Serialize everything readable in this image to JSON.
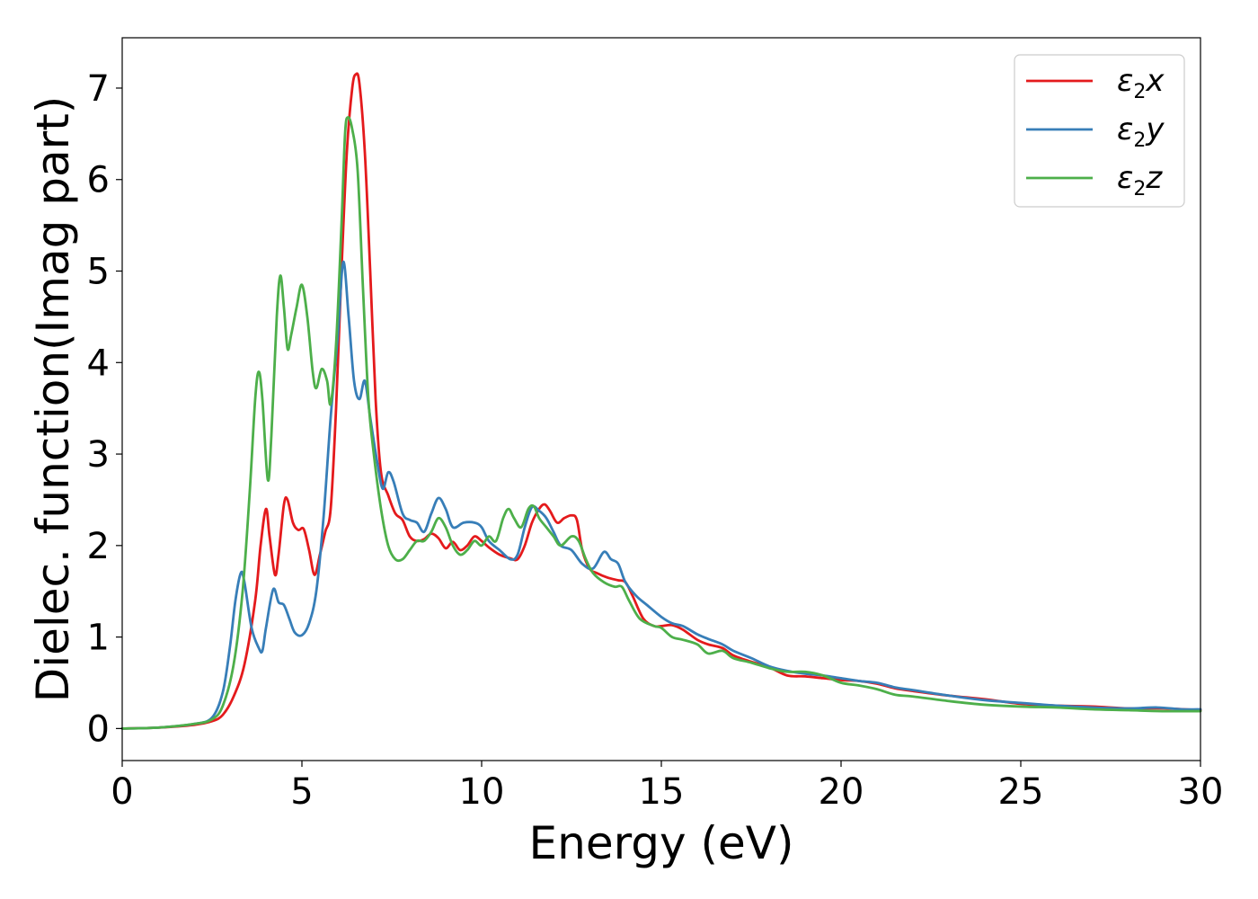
{
  "chart_data": {
    "type": "line",
    "title": "",
    "xlabel": "Energy (eV)",
    "ylabel": "Dielec. function(Imag part)",
    "xlim": [
      0,
      30
    ],
    "ylim": [
      -0.35,
      7.55
    ],
    "xticks": [
      0,
      5,
      10,
      15,
      20,
      25,
      30
    ],
    "yticks": [
      0,
      1,
      2,
      3,
      4,
      5,
      6,
      7
    ],
    "grid": false,
    "legend_position": "top-right",
    "series": [
      {
        "name": "ε2x",
        "legend_base": "ε",
        "legend_sub": "2",
        "legend_tail": "x",
        "color": "#e41a1c",
        "points": [
          [
            0,
            0
          ],
          [
            1,
            0.01
          ],
          [
            2,
            0.04
          ],
          [
            2.5,
            0.08
          ],
          [
            2.8,
            0.15
          ],
          [
            3.1,
            0.35
          ],
          [
            3.4,
            0.7
          ],
          [
            3.7,
            1.4
          ],
          [
            3.85,
            2.0
          ],
          [
            4.0,
            2.4
          ],
          [
            4.1,
            2.1
          ],
          [
            4.25,
            1.68
          ],
          [
            4.35,
            1.9
          ],
          [
            4.5,
            2.45
          ],
          [
            4.6,
            2.5
          ],
          [
            4.75,
            2.25
          ],
          [
            4.9,
            2.17
          ],
          [
            5.05,
            2.18
          ],
          [
            5.2,
            1.95
          ],
          [
            5.35,
            1.68
          ],
          [
            5.5,
            1.9
          ],
          [
            5.65,
            2.15
          ],
          [
            5.8,
            2.4
          ],
          [
            5.95,
            3.5
          ],
          [
            6.1,
            5.0
          ],
          [
            6.25,
            6.3
          ],
          [
            6.4,
            7.0
          ],
          [
            6.5,
            7.15
          ],
          [
            6.6,
            7.05
          ],
          [
            6.75,
            6.3
          ],
          [
            6.9,
            5.0
          ],
          [
            7.05,
            3.6
          ],
          [
            7.2,
            2.8
          ],
          [
            7.4,
            2.55
          ],
          [
            7.6,
            2.35
          ],
          [
            7.8,
            2.28
          ],
          [
            8.0,
            2.1
          ],
          [
            8.2,
            2.05
          ],
          [
            8.4,
            2.07
          ],
          [
            8.6,
            2.13
          ],
          [
            8.8,
            2.08
          ],
          [
            9.0,
            1.97
          ],
          [
            9.2,
            2.04
          ],
          [
            9.4,
            1.95
          ],
          [
            9.6,
            2.0
          ],
          [
            9.8,
            2.1
          ],
          [
            10.0,
            2.05
          ],
          [
            10.2,
            1.98
          ],
          [
            10.5,
            1.9
          ],
          [
            10.8,
            1.86
          ],
          [
            11.0,
            1.85
          ],
          [
            11.2,
            2.0
          ],
          [
            11.4,
            2.25
          ],
          [
            11.6,
            2.4
          ],
          [
            11.75,
            2.45
          ],
          [
            11.9,
            2.38
          ],
          [
            12.1,
            2.25
          ],
          [
            12.3,
            2.3
          ],
          [
            12.5,
            2.33
          ],
          [
            12.65,
            2.28
          ],
          [
            12.8,
            1.95
          ],
          [
            13.0,
            1.75
          ],
          [
            13.2,
            1.7
          ],
          [
            13.5,
            1.65
          ],
          [
            13.8,
            1.62
          ],
          [
            14.0,
            1.6
          ],
          [
            14.2,
            1.45
          ],
          [
            14.5,
            1.2
          ],
          [
            14.8,
            1.12
          ],
          [
            15.0,
            1.12
          ],
          [
            15.3,
            1.13
          ],
          [
            15.6,
            1.08
          ],
          [
            16.0,
            0.97
          ],
          [
            16.3,
            0.92
          ],
          [
            16.7,
            0.88
          ],
          [
            17.0,
            0.8
          ],
          [
            17.5,
            0.73
          ],
          [
            18.0,
            0.67
          ],
          [
            18.5,
            0.58
          ],
          [
            19.0,
            0.57
          ],
          [
            19.5,
            0.55
          ],
          [
            20.0,
            0.53
          ],
          [
            20.5,
            0.52
          ],
          [
            21.0,
            0.49
          ],
          [
            21.5,
            0.44
          ],
          [
            22.0,
            0.41
          ],
          [
            23.0,
            0.36
          ],
          [
            24.0,
            0.32
          ],
          [
            25.0,
            0.27
          ],
          [
            26.0,
            0.25
          ],
          [
            27.0,
            0.24
          ],
          [
            28.0,
            0.22
          ],
          [
            29.0,
            0.22
          ],
          [
            30.0,
            0.2
          ]
        ]
      },
      {
        "name": "ε2y",
        "legend_base": "ε",
        "legend_sub": "2",
        "legend_tail": "y",
        "color": "#377eb8",
        "points": [
          [
            0,
            0
          ],
          [
            1,
            0.01
          ],
          [
            2,
            0.05
          ],
          [
            2.5,
            0.12
          ],
          [
            2.8,
            0.4
          ],
          [
            3.0,
            0.9
          ],
          [
            3.15,
            1.4
          ],
          [
            3.3,
            1.7
          ],
          [
            3.4,
            1.6
          ],
          [
            3.6,
            1.1
          ],
          [
            3.8,
            0.88
          ],
          [
            3.9,
            0.85
          ],
          [
            4.0,
            1.1
          ],
          [
            4.2,
            1.52
          ],
          [
            4.35,
            1.38
          ],
          [
            4.5,
            1.35
          ],
          [
            4.65,
            1.2
          ],
          [
            4.8,
            1.05
          ],
          [
            5.0,
            1.02
          ],
          [
            5.2,
            1.15
          ],
          [
            5.4,
            1.5
          ],
          [
            5.6,
            2.3
          ],
          [
            5.8,
            3.4
          ],
          [
            6.0,
            4.3
          ],
          [
            6.15,
            5.1
          ],
          [
            6.3,
            4.5
          ],
          [
            6.45,
            3.8
          ],
          [
            6.6,
            3.6
          ],
          [
            6.75,
            3.8
          ],
          [
            6.9,
            3.4
          ],
          [
            7.1,
            2.9
          ],
          [
            7.25,
            2.62
          ],
          [
            7.4,
            2.8
          ],
          [
            7.55,
            2.7
          ],
          [
            7.8,
            2.35
          ],
          [
            8.0,
            2.28
          ],
          [
            8.2,
            2.25
          ],
          [
            8.4,
            2.15
          ],
          [
            8.6,
            2.35
          ],
          [
            8.8,
            2.52
          ],
          [
            9.0,
            2.4
          ],
          [
            9.2,
            2.2
          ],
          [
            9.5,
            2.25
          ],
          [
            9.8,
            2.25
          ],
          [
            10.0,
            2.2
          ],
          [
            10.2,
            2.05
          ],
          [
            10.5,
            1.95
          ],
          [
            10.8,
            1.85
          ],
          [
            11.0,
            1.9
          ],
          [
            11.2,
            2.2
          ],
          [
            11.4,
            2.42
          ],
          [
            11.6,
            2.38
          ],
          [
            11.8,
            2.3
          ],
          [
            12.0,
            2.15
          ],
          [
            12.2,
            2.0
          ],
          [
            12.5,
            1.95
          ],
          [
            12.8,
            1.8
          ],
          [
            13.1,
            1.75
          ],
          [
            13.4,
            1.93
          ],
          [
            13.6,
            1.85
          ],
          [
            13.8,
            1.8
          ],
          [
            14.0,
            1.6
          ],
          [
            14.3,
            1.45
          ],
          [
            14.6,
            1.35
          ],
          [
            15.0,
            1.22
          ],
          [
            15.3,
            1.15
          ],
          [
            15.6,
            1.12
          ],
          [
            16.0,
            1.03
          ],
          [
            16.3,
            0.98
          ],
          [
            16.7,
            0.92
          ],
          [
            17.0,
            0.85
          ],
          [
            17.5,
            0.77
          ],
          [
            18.0,
            0.68
          ],
          [
            18.5,
            0.63
          ],
          [
            19.0,
            0.6
          ],
          [
            19.5,
            0.58
          ],
          [
            20.0,
            0.55
          ],
          [
            20.5,
            0.52
          ],
          [
            21.0,
            0.5
          ],
          [
            21.5,
            0.45
          ],
          [
            22.0,
            0.42
          ],
          [
            23.0,
            0.36
          ],
          [
            24.0,
            0.31
          ],
          [
            25.0,
            0.28
          ],
          [
            26.0,
            0.25
          ],
          [
            27.0,
            0.23
          ],
          [
            28.0,
            0.22
          ],
          [
            28.8,
            0.23
          ],
          [
            29.5,
            0.21
          ],
          [
            30.0,
            0.21
          ]
        ]
      },
      {
        "name": "ε2z",
        "legend_base": "ε",
        "legend_sub": "2",
        "legend_tail": "z",
        "color": "#4daf4a",
        "points": [
          [
            0,
            0
          ],
          [
            1,
            0.01
          ],
          [
            2,
            0.05
          ],
          [
            2.5,
            0.1
          ],
          [
            2.8,
            0.25
          ],
          [
            3.1,
            0.7
          ],
          [
            3.35,
            1.5
          ],
          [
            3.55,
            2.6
          ],
          [
            3.7,
            3.6
          ],
          [
            3.8,
            3.9
          ],
          [
            3.9,
            3.6
          ],
          [
            4.05,
            2.72
          ],
          [
            4.15,
            3.2
          ],
          [
            4.3,
            4.5
          ],
          [
            4.4,
            4.95
          ],
          [
            4.5,
            4.6
          ],
          [
            4.6,
            4.15
          ],
          [
            4.7,
            4.3
          ],
          [
            4.85,
            4.6
          ],
          [
            5.0,
            4.85
          ],
          [
            5.15,
            4.5
          ],
          [
            5.3,
            3.9
          ],
          [
            5.4,
            3.72
          ],
          [
            5.55,
            3.93
          ],
          [
            5.7,
            3.8
          ],
          [
            5.8,
            3.55
          ],
          [
            5.95,
            4.2
          ],
          [
            6.1,
            5.5
          ],
          [
            6.2,
            6.5
          ],
          [
            6.28,
            6.68
          ],
          [
            6.4,
            6.55
          ],
          [
            6.55,
            6.1
          ],
          [
            6.7,
            4.8
          ],
          [
            6.85,
            3.6
          ],
          [
            7.0,
            3.0
          ],
          [
            7.2,
            2.4
          ],
          [
            7.4,
            2.0
          ],
          [
            7.6,
            1.85
          ],
          [
            7.8,
            1.85
          ],
          [
            8.0,
            1.95
          ],
          [
            8.2,
            2.05
          ],
          [
            8.4,
            2.05
          ],
          [
            8.6,
            2.15
          ],
          [
            8.8,
            2.3
          ],
          [
            9.0,
            2.2
          ],
          [
            9.2,
            2.0
          ],
          [
            9.4,
            1.9
          ],
          [
            9.6,
            1.95
          ],
          [
            9.8,
            2.05
          ],
          [
            10.0,
            2.0
          ],
          [
            10.2,
            2.1
          ],
          [
            10.4,
            2.05
          ],
          [
            10.6,
            2.3
          ],
          [
            10.75,
            2.4
          ],
          [
            10.9,
            2.3
          ],
          [
            11.1,
            2.2
          ],
          [
            11.3,
            2.4
          ],
          [
            11.45,
            2.43
          ],
          [
            11.6,
            2.3
          ],
          [
            11.8,
            2.2
          ],
          [
            12.0,
            2.1
          ],
          [
            12.2,
            2.0
          ],
          [
            12.5,
            2.1
          ],
          [
            12.7,
            2.05
          ],
          [
            12.9,
            1.85
          ],
          [
            13.1,
            1.7
          ],
          [
            13.4,
            1.6
          ],
          [
            13.7,
            1.55
          ],
          [
            13.9,
            1.55
          ],
          [
            14.1,
            1.4
          ],
          [
            14.4,
            1.2
          ],
          [
            14.8,
            1.12
          ],
          [
            15.0,
            1.1
          ],
          [
            15.3,
            1.0
          ],
          [
            15.6,
            0.97
          ],
          [
            16.0,
            0.92
          ],
          [
            16.3,
            0.82
          ],
          [
            16.7,
            0.85
          ],
          [
            17.0,
            0.77
          ],
          [
            17.5,
            0.72
          ],
          [
            18.0,
            0.66
          ],
          [
            18.5,
            0.62
          ],
          [
            19.0,
            0.62
          ],
          [
            19.5,
            0.58
          ],
          [
            20.0,
            0.5
          ],
          [
            20.5,
            0.47
          ],
          [
            21.0,
            0.43
          ],
          [
            21.5,
            0.37
          ],
          [
            22.0,
            0.35
          ],
          [
            23.0,
            0.3
          ],
          [
            24.0,
            0.26
          ],
          [
            25.0,
            0.24
          ],
          [
            26.0,
            0.23
          ],
          [
            27.0,
            0.21
          ],
          [
            28.0,
            0.2
          ],
          [
            29.0,
            0.19
          ],
          [
            30.0,
            0.19
          ]
        ]
      }
    ]
  }
}
